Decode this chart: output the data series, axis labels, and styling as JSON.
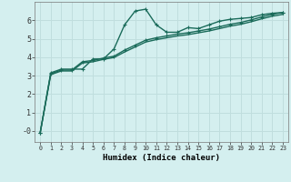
{
  "xlabel": "Humidex (Indice chaleur)",
  "background_color": "#d4efef",
  "grid_color": "#c0dede",
  "line_color": "#1a6b5a",
  "x_min": -0.5,
  "x_max": 23.5,
  "y_min": -0.6,
  "y_max": 7.0,
  "line1_x": [
    0,
    1,
    2,
    3,
    4,
    5,
    6,
    7,
    8,
    9,
    10,
    11,
    12,
    13,
    14,
    15,
    16,
    17,
    18,
    19,
    20,
    21,
    22,
    23
  ],
  "line1_y": [
    -0.1,
    3.15,
    3.35,
    3.35,
    3.35,
    3.9,
    3.9,
    4.45,
    5.75,
    6.5,
    6.6,
    5.75,
    5.35,
    5.35,
    5.6,
    5.55,
    5.75,
    5.95,
    6.05,
    6.1,
    6.15,
    6.3,
    6.38,
    6.42
  ],
  "line2_x": [
    0,
    1,
    2,
    3,
    4,
    5,
    6,
    7,
    8,
    9,
    10,
    11,
    12,
    13,
    14,
    15,
    16,
    17,
    18,
    19,
    20,
    21,
    22,
    23
  ],
  "line2_y": [
    -0.1,
    3.1,
    3.3,
    3.3,
    3.75,
    3.82,
    3.95,
    4.05,
    4.38,
    4.65,
    4.92,
    5.05,
    5.15,
    5.25,
    5.32,
    5.42,
    5.52,
    5.65,
    5.78,
    5.88,
    6.02,
    6.18,
    6.32,
    6.42
  ],
  "line3_x": [
    0,
    1,
    2,
    3,
    4,
    5,
    6,
    7,
    8,
    9,
    10,
    11,
    12,
    13,
    14,
    15,
    16,
    17,
    18,
    19,
    20,
    21,
    22,
    23
  ],
  "line3_y": [
    -0.1,
    3.05,
    3.25,
    3.25,
    3.68,
    3.75,
    3.88,
    3.98,
    4.28,
    4.55,
    4.82,
    4.95,
    5.05,
    5.15,
    5.22,
    5.32,
    5.42,
    5.55,
    5.68,
    5.78,
    5.92,
    6.08,
    6.22,
    6.32
  ],
  "yticks": [
    0,
    1,
    2,
    3,
    4,
    5,
    6
  ],
  "ytick_labels": [
    "-0",
    "1",
    "2",
    "3",
    "4",
    "5",
    "6"
  ],
  "xtick_labels": [
    "0",
    "1",
    "2",
    "3",
    "4",
    "5",
    "6",
    "7",
    "8",
    "9",
    "10",
    "11",
    "12",
    "13",
    "14",
    "15",
    "16",
    "17",
    "18",
    "19",
    "20",
    "21",
    "22",
    "23"
  ]
}
